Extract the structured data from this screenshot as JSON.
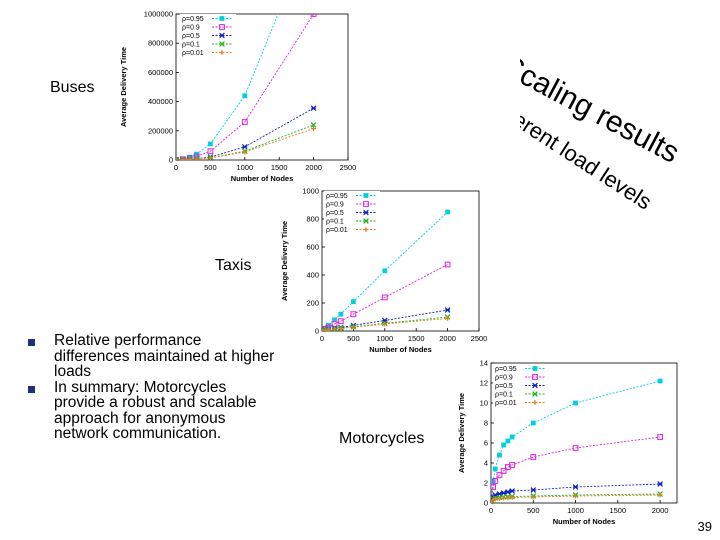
{
  "slide": {
    "title_main": "Scaling results",
    "title_sub": "for different load levels",
    "labels": {
      "buses": "Buses",
      "taxis": "Taxis",
      "motorcycles": "Motorcycles"
    },
    "bullets": [
      "Relative performance differences maintained at higher loads",
      "In summary: Motorcycles provide a robust and scalable approach for anonymous network communication."
    ],
    "page_number": "39"
  },
  "colors": {
    "bullet": "#1f2f7a",
    "p095": "#00d0e0",
    "p09": "#e020e0",
    "p05": "#1020c0",
    "p01": "#20b020",
    "p001": "#e08020"
  },
  "chart_data": [
    {
      "type": "line",
      "xlabel": "Number of Nodes",
      "ylabel": "Average Delivery Time",
      "xticks": [
        "0",
        "500",
        "1000",
        "1500",
        "2000",
        "2500"
      ],
      "yticks": [
        "0",
        "200000",
        "400000",
        "600000",
        "800000",
        "1000000"
      ],
      "xlim": [
        0,
        2500
      ],
      "ylim": [
        0,
        1000000
      ],
      "series": [
        {
          "name": "ρ=0.95",
          "marker": "square-filled",
          "color": "#00d0e0",
          "x": [
            0,
            100,
            200,
            300,
            500,
            1000,
            2000
          ],
          "y": [
            0,
            8000,
            20000,
            40000,
            110000,
            440000,
            1600000
          ]
        },
        {
          "name": "ρ=0.9",
          "marker": "square",
          "color": "#e020e0",
          "x": [
            0,
            100,
            200,
            300,
            500,
            1000,
            2000
          ],
          "y": [
            0,
            5000,
            12000,
            25000,
            60000,
            260000,
            1000000
          ]
        },
        {
          "name": "ρ=0.5",
          "marker": "star",
          "color": "#1020c0",
          "x": [
            0,
            100,
            200,
            300,
            500,
            1000,
            2000
          ],
          "y": [
            0,
            3000,
            6000,
            10000,
            20000,
            90000,
            355000
          ]
        },
        {
          "name": "ρ=0.1",
          "marker": "x",
          "color": "#20b020",
          "x": [
            0,
            100,
            200,
            300,
            500,
            1000,
            2000
          ],
          "y": [
            0,
            2000,
            5000,
            8000,
            15000,
            60000,
            240000
          ]
        },
        {
          "name": "ρ=0.01",
          "marker": "plus",
          "color": "#e08020",
          "x": [
            0,
            100,
            200,
            300,
            500,
            1000,
            2000
          ],
          "y": [
            0,
            2000,
            4000,
            7000,
            14000,
            55000,
            215000
          ]
        }
      ]
    },
    {
      "type": "line",
      "xlabel": "Number of Nodes",
      "ylabel": "Average Delivery Time",
      "xticks": [
        "0",
        "500",
        "1000",
        "1500",
        "2000",
        "2500"
      ],
      "yticks": [
        "0",
        "200",
        "400",
        "600",
        "800",
        "1000"
      ],
      "xlim": [
        0,
        2500
      ],
      "ylim": [
        0,
        1000
      ],
      "series": [
        {
          "name": "ρ=0.95",
          "marker": "square-filled",
          "color": "#00d0e0",
          "x": [
            0,
            50,
            100,
            200,
            300,
            500,
            1000,
            2000
          ],
          "y": [
            0,
            20,
            40,
            80,
            120,
            210,
            430,
            850
          ]
        },
        {
          "name": "ρ=0.9",
          "marker": "square",
          "color": "#e020e0",
          "x": [
            0,
            50,
            100,
            200,
            300,
            500,
            1000,
            2000
          ],
          "y": [
            0,
            15,
            25,
            50,
            70,
            120,
            240,
            475
          ]
        },
        {
          "name": "ρ=0.5",
          "marker": "star",
          "color": "#1020c0",
          "x": [
            0,
            50,
            100,
            200,
            300,
            500,
            1000,
            2000
          ],
          "y": [
            0,
            5,
            10,
            20,
            25,
            40,
            75,
            150
          ]
        },
        {
          "name": "ρ=0.1",
          "marker": "x",
          "color": "#20b020",
          "x": [
            0,
            50,
            100,
            200,
            300,
            500,
            1000,
            2000
          ],
          "y": [
            0,
            4,
            8,
            15,
            20,
            30,
            55,
            100
          ]
        },
        {
          "name": "ρ=0.01",
          "marker": "plus",
          "color": "#e08020",
          "x": [
            0,
            50,
            100,
            200,
            300,
            500,
            1000,
            2000
          ],
          "y": [
            0,
            4,
            8,
            14,
            18,
            28,
            50,
            90
          ]
        }
      ]
    },
    {
      "type": "line",
      "xlabel": "Number of Nodes",
      "ylabel": "Average Delivery Time",
      "xticks": [
        "0",
        "500",
        "1000",
        "1500",
        "2000"
      ],
      "yticks": [
        "0",
        "2",
        "4",
        "6",
        "8",
        "10",
        "12",
        "14"
      ],
      "xlim": [
        0,
        2200
      ],
      "ylim": [
        0,
        14
      ],
      "series": [
        {
          "name": "ρ=0.95",
          "marker": "square-filled",
          "color": "#00d0e0",
          "x": [
            0,
            25,
            50,
            100,
            150,
            200,
            250,
            500,
            1000,
            2000
          ],
          "y": [
            0,
            2.2,
            3.4,
            4.8,
            5.8,
            6.2,
            6.6,
            8.0,
            10.0,
            12.2
          ]
        },
        {
          "name": "ρ=0.9",
          "marker": "square",
          "color": "#e020e0",
          "x": [
            0,
            25,
            50,
            100,
            150,
            200,
            250,
            500,
            1000,
            2000
          ],
          "y": [
            0,
            1.6,
            2.2,
            2.8,
            3.2,
            3.6,
            3.8,
            4.6,
            5.5,
            6.6
          ]
        },
        {
          "name": "ρ=0.5",
          "marker": "star",
          "color": "#1020c0",
          "x": [
            0,
            25,
            50,
            100,
            150,
            200,
            250,
            500,
            1000,
            2000
          ],
          "y": [
            0,
            0.6,
            0.8,
            0.9,
            1.0,
            1.1,
            1.2,
            1.3,
            1.6,
            1.9
          ]
        },
        {
          "name": "ρ=0.1",
          "marker": "x",
          "color": "#20b020",
          "x": [
            0,
            25,
            50,
            100,
            150,
            200,
            250,
            500,
            1000,
            2000
          ],
          "y": [
            0,
            0.4,
            0.5,
            0.55,
            0.6,
            0.62,
            0.65,
            0.7,
            0.8,
            0.9
          ]
        },
        {
          "name": "ρ=0.01",
          "marker": "plus",
          "color": "#e08020",
          "x": [
            0,
            25,
            50,
            100,
            150,
            200,
            250,
            500,
            1000,
            2000
          ],
          "y": [
            0,
            0.3,
            0.4,
            0.45,
            0.5,
            0.52,
            0.55,
            0.6,
            0.7,
            0.8
          ]
        }
      ]
    }
  ]
}
